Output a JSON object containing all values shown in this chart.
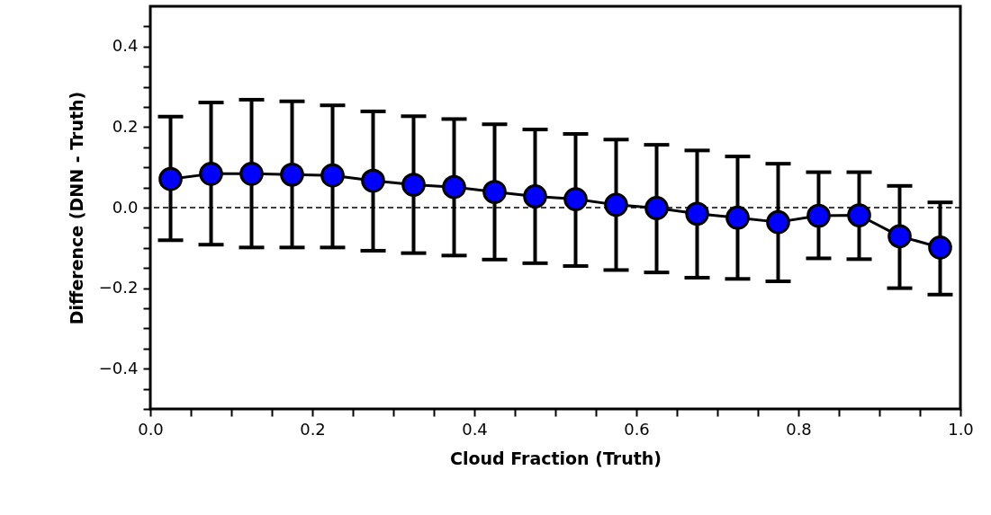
{
  "chart_data": {
    "type": "line",
    "xlabel": "Cloud Fraction (Truth)",
    "ylabel": "Difference (DNN - Truth)",
    "x": [
      0.025,
      0.075,
      0.125,
      0.175,
      0.225,
      0.275,
      0.325,
      0.375,
      0.425,
      0.475,
      0.525,
      0.575,
      0.625,
      0.675,
      0.725,
      0.775,
      0.825,
      0.875,
      0.925,
      0.975
    ],
    "series": [
      {
        "color": "#0000ff",
        "values": [
          0.071,
          0.084,
          0.084,
          0.082,
          0.08,
          0.067,
          0.057,
          0.051,
          0.039,
          0.028,
          0.021,
          0.007,
          -0.001,
          -0.015,
          -0.025,
          -0.036,
          -0.02,
          -0.019,
          -0.071,
          -0.099
        ],
        "errors": [
          [
            -0.081,
            0.226
          ],
          [
            -0.092,
            0.261
          ],
          [
            -0.099,
            0.268
          ],
          [
            -0.099,
            0.264
          ],
          [
            -0.099,
            0.254
          ],
          [
            -0.107,
            0.239
          ],
          [
            -0.113,
            0.227
          ],
          [
            -0.119,
            0.22
          ],
          [
            -0.129,
            0.207
          ],
          [
            -0.138,
            0.194
          ],
          [
            -0.145,
            0.183
          ],
          [
            -0.155,
            0.169
          ],
          [
            -0.161,
            0.156
          ],
          [
            -0.174,
            0.142
          ],
          [
            -0.177,
            0.127
          ],
          [
            -0.183,
            0.109
          ],
          [
            -0.126,
            0.088
          ],
          [
            -0.128,
            0.088
          ],
          [
            -0.2,
            0.054
          ],
          [
            -0.216,
            0.013
          ]
        ]
      }
    ],
    "xlim": [
      0,
      1
    ],
    "ylim": [
      -0.5,
      0.5
    ],
    "xticks": [
      {
        "value": 0,
        "label": "0.0"
      },
      {
        "value": 0.05,
        "label": null
      },
      {
        "value": 0.1,
        "label": null
      },
      {
        "value": 0.15,
        "label": null
      },
      {
        "value": 0.2,
        "label": "0.2"
      },
      {
        "value": 0.25,
        "label": null
      },
      {
        "value": 0.3,
        "label": null
      },
      {
        "value": 0.35,
        "label": null
      },
      {
        "value": 0.4,
        "label": "0.4"
      },
      {
        "value": 0.45,
        "label": null
      },
      {
        "value": 0.5,
        "label": null
      },
      {
        "value": 0.55,
        "label": null
      },
      {
        "value": 0.6,
        "label": "0.6"
      },
      {
        "value": 0.65,
        "label": null
      },
      {
        "value": 0.7,
        "label": null
      },
      {
        "value": 0.75,
        "label": null
      },
      {
        "value": 0.8,
        "label": "0.8"
      },
      {
        "value": 0.85,
        "label": null
      },
      {
        "value": 0.9,
        "label": null
      },
      {
        "value": 0.95,
        "label": null
      },
      {
        "value": 1,
        "label": "1.0"
      }
    ],
    "yticks": [
      {
        "value": -0.5,
        "label": null
      },
      {
        "value": -0.45,
        "label": null
      },
      {
        "value": -0.4,
        "label": "−0.4"
      },
      {
        "value": -0.35,
        "label": null
      },
      {
        "value": -0.3,
        "label": null
      },
      {
        "value": -0.25,
        "label": null
      },
      {
        "value": -0.2,
        "label": "−0.2"
      },
      {
        "value": -0.15,
        "label": null
      },
      {
        "value": -0.1,
        "label": null
      },
      {
        "value": -0.05,
        "label": null
      },
      {
        "value": 0,
        "label": "0.0"
      },
      {
        "value": 0.05,
        "label": null
      },
      {
        "value": 0.1,
        "label": null
      },
      {
        "value": 0.15,
        "label": null
      },
      {
        "value": 0.2,
        "label": "0.2"
      },
      {
        "value": 0.25,
        "label": null
      },
      {
        "value": 0.3,
        "label": null
      },
      {
        "value": 0.35,
        "label": null
      },
      {
        "value": 0.4,
        "label": "0.4"
      },
      {
        "value": 0.45,
        "label": null
      }
    ],
    "ref_lines": [
      {
        "axis": "y",
        "value": 0,
        "line_style": "dashed"
      }
    ],
    "marker": "circle",
    "line_style": "solid",
    "grid": false
  }
}
